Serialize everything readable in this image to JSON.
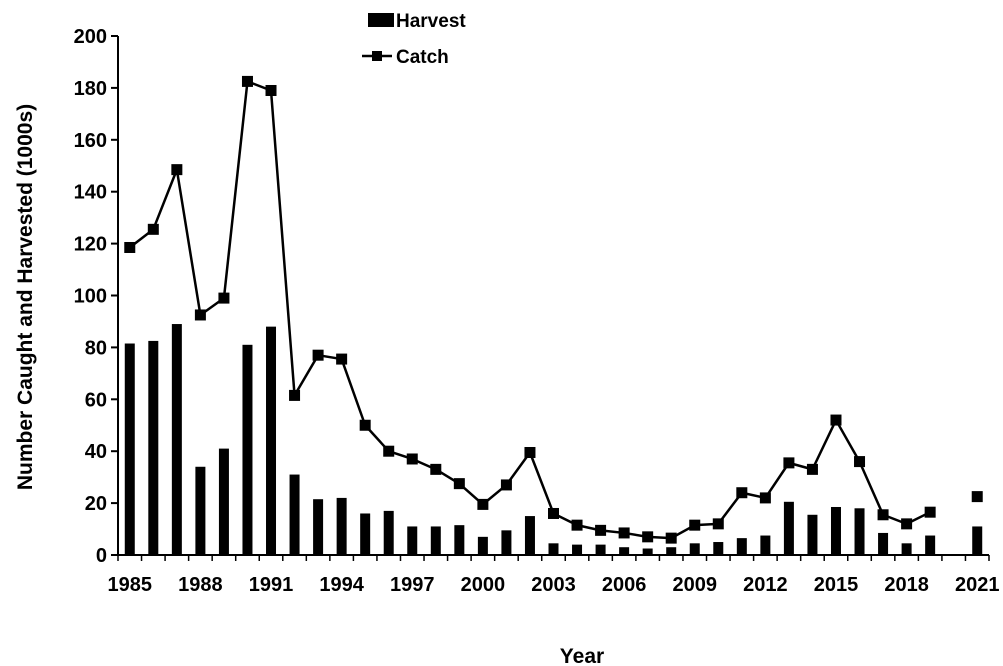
{
  "chart_data": {
    "type": "bar",
    "title": "",
    "xlabel": "Year",
    "ylabel": "Number Caught and Harvested (1000s)",
    "ylim": [
      0,
      200
    ],
    "yticks": [
      0,
      20,
      40,
      60,
      80,
      100,
      120,
      140,
      160,
      180,
      200
    ],
    "xtick_labels": [
      "1985",
      "1988",
      "1991",
      "1994",
      "1997",
      "2000",
      "2003",
      "2006",
      "2009",
      "2012",
      "2015",
      "2018",
      "2021"
    ],
    "grid": false,
    "legend_position": "top-center",
    "x": [
      1985,
      1986,
      1987,
      1988,
      1989,
      1990,
      1991,
      1992,
      1993,
      1994,
      1995,
      1996,
      1997,
      1998,
      1999,
      2000,
      2001,
      2002,
      2003,
      2004,
      2005,
      2006,
      2007,
      2008,
      2009,
      2010,
      2011,
      2012,
      2013,
      2014,
      2015,
      2016,
      2017,
      2018,
      2019,
      2020,
      2021
    ],
    "series": [
      {
        "name": "Harvest",
        "type": "bar",
        "color": "#000000",
        "values": [
          81.5,
          82.5,
          89,
          34,
          41,
          81,
          88,
          31,
          21.5,
          22,
          16,
          17,
          11,
          11,
          11.5,
          7,
          9.5,
          15,
          4.5,
          4,
          4,
          3,
          2.5,
          3,
          4.5,
          5,
          6.5,
          7.5,
          20.5,
          15.5,
          18.5,
          18,
          8.5,
          4.5,
          7.5,
          null,
          11
        ]
      },
      {
        "name": "Catch",
        "type": "line",
        "color": "#000000",
        "marker": "square",
        "values": [
          118.5,
          125.5,
          148.5,
          92.5,
          99,
          182.5,
          179,
          61.5,
          77,
          75.5,
          50,
          40,
          37,
          33,
          27.5,
          19.5,
          27,
          39.5,
          16,
          11.5,
          9.5,
          8.5,
          7,
          6.5,
          11.5,
          12,
          24,
          22,
          35.5,
          33,
          52,
          36,
          15.5,
          12,
          16.5,
          null,
          22.5
        ]
      }
    ]
  }
}
